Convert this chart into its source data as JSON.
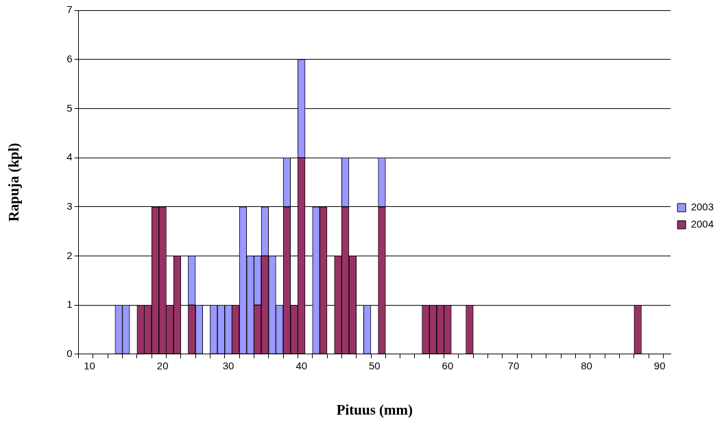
{
  "chart_data": {
    "type": "bar",
    "stacked": true,
    "xlabel": "Pituus (mm)",
    "ylabel": "Rapuja (kpl)",
    "categories": [
      null,
      "10",
      null,
      null,
      null,
      null,
      null,
      null,
      null,
      null,
      null,
      "20",
      null,
      null,
      null,
      null,
      null,
      null,
      null,
      null,
      "30",
      null,
      null,
      null,
      null,
      null,
      null,
      null,
      null,
      null,
      "40",
      null,
      null,
      null,
      null,
      null,
      null,
      null,
      null,
      null,
      "50",
      null,
      null,
      null,
      null,
      null,
      null,
      null,
      null,
      null,
      "60",
      null,
      null,
      null,
      null,
      null,
      null,
      null,
      null,
      "70",
      null,
      null,
      null,
      null,
      null,
      null,
      null,
      null,
      null,
      "80",
      null,
      null,
      null,
      null,
      null,
      null,
      null,
      null,
      null,
      "90",
      null
    ],
    "series": [
      {
        "name": "2004",
        "color": "#993366",
        "values": [
          null,
          null,
          null,
          null,
          null,
          null,
          null,
          null,
          1,
          1,
          3,
          3,
          1,
          2,
          null,
          1,
          null,
          null,
          null,
          null,
          null,
          1,
          null,
          null,
          1,
          2,
          null,
          null,
          3,
          1,
          4,
          null,
          null,
          3,
          null,
          2,
          3,
          2,
          null,
          null,
          null,
          3,
          null,
          null,
          null,
          null,
          null,
          1,
          1,
          1,
          1,
          null,
          null,
          1,
          null,
          null,
          null,
          null,
          null,
          null,
          null,
          null,
          null,
          null,
          null,
          null,
          null,
          null,
          null,
          null,
          null,
          null,
          null,
          null,
          null,
          null,
          1,
          null,
          null,
          null,
          null
        ]
      },
      {
        "name": "2003",
        "color": "#9999ff",
        "values": [
          null,
          null,
          null,
          null,
          null,
          1,
          1,
          null,
          null,
          null,
          null,
          null,
          null,
          null,
          null,
          1,
          1,
          null,
          1,
          1,
          1,
          null,
          3,
          2,
          1,
          1,
          2,
          1,
          1,
          null,
          2,
          null,
          3,
          null,
          null,
          null,
          1,
          null,
          null,
          1,
          null,
          1,
          null,
          null,
          null,
          null,
          null,
          null,
          null,
          null,
          null,
          null,
          null,
          null,
          null,
          null,
          null,
          null,
          null,
          null,
          null,
          null,
          null,
          null,
          null,
          null,
          null,
          null,
          null,
          null,
          null,
          null,
          null,
          null,
          null,
          null,
          null,
          null,
          null,
          null,
          null
        ]
      }
    ],
    "ylim": [
      0,
      7
    ],
    "yticks": [
      0,
      1,
      2,
      3,
      4,
      5,
      6,
      7
    ],
    "grid": "y",
    "legend": "right"
  }
}
